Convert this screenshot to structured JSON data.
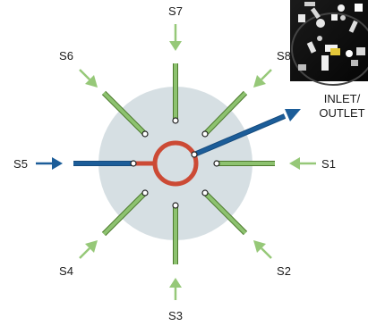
{
  "diagram": {
    "ports": [
      {
        "id": "S1",
        "label": "S1"
      },
      {
        "id": "S2",
        "label": "S2"
      },
      {
        "id": "S3",
        "label": "S3"
      },
      {
        "id": "S4",
        "label": "S4"
      },
      {
        "id": "S5",
        "label": "S5"
      },
      {
        "id": "S6",
        "label": "S6"
      },
      {
        "id": "S7",
        "label": "S7"
      },
      {
        "id": "S8",
        "label": "S8"
      }
    ],
    "outlet": {
      "line1": "INLET/",
      "line2": "OUTLET"
    },
    "colors": {
      "disc": "#d6dfe3",
      "channel_fill": "#8dc26f",
      "channel_stroke": "#4d7a2e",
      "arrow": "#96c878",
      "blue": "#1c5d99",
      "red": "#cc4a35",
      "photo_bg": "#0e0e0e"
    },
    "photo": {
      "description_icon": "valve-photo-icon"
    }
  }
}
